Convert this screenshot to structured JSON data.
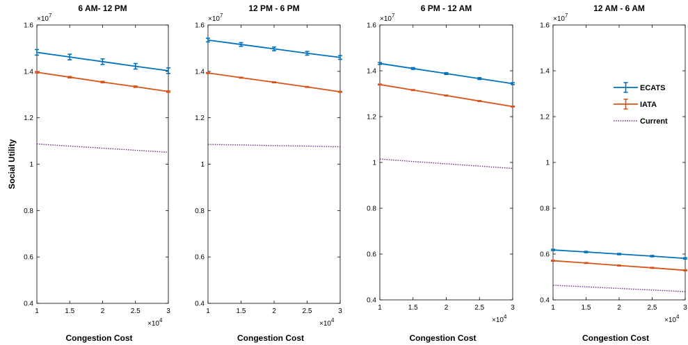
{
  "colors": {
    "ecats": "#0072BD",
    "iata": "#D95319",
    "current": "#7E2F8E",
    "axis": "#000000"
  },
  "chart_data": [
    {
      "type": "line",
      "title": "6 AM- 12 PM",
      "xlabel": "Congestion Cost",
      "ylabel": "Social Utility",
      "x_multiplier": "×10",
      "x_exponent": "4",
      "y_multiplier": "×10",
      "y_exponent": "7",
      "xlim": [
        1,
        3
      ],
      "ylim": [
        0.4,
        1.6
      ],
      "x_ticks": [
        "1",
        "1.5",
        "2",
        "2.5",
        "3"
      ],
      "y_ticks": [
        "0.4",
        "0.6",
        "0.8",
        "1",
        "1.2",
        "1.4",
        "1.6"
      ],
      "x": [
        1,
        1.5,
        2,
        2.5,
        3
      ],
      "series": [
        {
          "name": "ECATS",
          "values": [
            1.482,
            1.462,
            1.442,
            1.422,
            1.403
          ],
          "err": [
            0.012,
            0.012,
            0.012,
            0.012,
            0.012
          ],
          "style": "solid"
        },
        {
          "name": "IATA",
          "values": [
            1.396,
            1.375,
            1.354,
            1.334,
            1.313
          ],
          "err": [
            0.003,
            0.003,
            0.003,
            0.003,
            0.003
          ],
          "style": "solid"
        },
        {
          "name": "Current",
          "values": [
            1.087,
            1.078,
            1.069,
            1.06,
            1.051
          ],
          "style": "dotted"
        }
      ]
    },
    {
      "type": "line",
      "title": "12 PM - 6 PM",
      "xlabel": "Congestion Cost",
      "ylabel": "",
      "x_multiplier": "×10",
      "x_exponent": "4",
      "y_multiplier": "×10",
      "y_exponent": "7",
      "xlim": [
        1,
        3
      ],
      "ylim": [
        0.4,
        1.6
      ],
      "x_ticks": [
        "1",
        "1.5",
        "2",
        "2.5",
        "3"
      ],
      "y_ticks": [
        "0.4",
        "0.6",
        "0.8",
        "1",
        "1.2",
        "1.4",
        "1.6"
      ],
      "x": [
        1,
        1.5,
        2,
        2.5,
        3
      ],
      "series": [
        {
          "name": "ECATS",
          "values": [
            1.535,
            1.516,
            1.497,
            1.478,
            1.46
          ],
          "err": [
            0.008,
            0.008,
            0.008,
            0.008,
            0.008
          ],
          "style": "solid"
        },
        {
          "name": "IATA",
          "values": [
            1.393,
            1.373,
            1.353,
            1.333,
            1.312
          ],
          "err": [
            0.002,
            0.002,
            0.002,
            0.002,
            0.002
          ],
          "style": "solid"
        },
        {
          "name": "Current",
          "values": [
            1.085,
            1.083,
            1.08,
            1.078,
            1.075
          ],
          "style": "dotted"
        }
      ]
    },
    {
      "type": "line",
      "title": "6 PM - 12 AM",
      "xlabel": "Congestion Cost",
      "ylabel": "",
      "x_multiplier": "×10",
      "x_exponent": "4",
      "y_multiplier": "×10",
      "y_exponent": "7",
      "xlim": [
        1,
        3
      ],
      "ylim": [
        0.4,
        1.6
      ],
      "x_ticks": [
        "1",
        "1.5",
        "2",
        "2.5",
        "3"
      ],
      "y_ticks": [
        "0.4",
        "0.6",
        "0.8",
        "1",
        "1.2",
        "1.4",
        "1.6"
      ],
      "x": [
        1,
        1.5,
        2,
        2.5,
        3
      ],
      "series": [
        {
          "name": "ECATS",
          "values": [
            1.432,
            1.41,
            1.388,
            1.366,
            1.344
          ],
          "err": [
            0.004,
            0.004,
            0.004,
            0.004,
            0.004
          ],
          "style": "solid"
        },
        {
          "name": "IATA",
          "values": [
            1.34,
            1.316,
            1.292,
            1.268,
            1.244
          ],
          "err": [
            0.002,
            0.002,
            0.002,
            0.002,
            0.002
          ],
          "style": "solid"
        },
        {
          "name": "Current",
          "values": [
            1.015,
            1.004,
            0.994,
            0.984,
            0.974
          ],
          "style": "dotted"
        }
      ]
    },
    {
      "type": "line",
      "title": "12 AM - 6 AM",
      "xlabel": "Congestion Cost",
      "ylabel": "",
      "x_multiplier": "×10",
      "x_exponent": "4",
      "y_multiplier": "×10",
      "y_exponent": "7",
      "xlim": [
        1,
        3
      ],
      "ylim": [
        0.4,
        1.6
      ],
      "x_ticks": [
        "1",
        "1.5",
        "2",
        "2.5",
        "3"
      ],
      "y_ticks": [
        "0.4",
        "0.6",
        "0.8",
        "1",
        "1.2",
        "1.4",
        "1.6"
      ],
      "x": [
        1,
        1.5,
        2,
        2.5,
        3
      ],
      "legend": {
        "placement": "top-right",
        "entries": [
          "ECATS",
          "IATA",
          "Current"
        ]
      },
      "series": [
        {
          "name": "ECATS",
          "values": [
            0.618,
            0.609,
            0.6,
            0.591,
            0.581
          ],
          "err": [
            0.003,
            0.003,
            0.003,
            0.003,
            0.003
          ],
          "style": "solid"
        },
        {
          "name": "IATA",
          "values": [
            0.571,
            0.561,
            0.55,
            0.54,
            0.529
          ],
          "err": [
            0.002,
            0.002,
            0.002,
            0.002,
            0.002
          ],
          "style": "solid"
        },
        {
          "name": "Current",
          "values": [
            0.464,
            0.457,
            0.45,
            0.443,
            0.436
          ],
          "style": "dotted"
        }
      ]
    }
  ]
}
